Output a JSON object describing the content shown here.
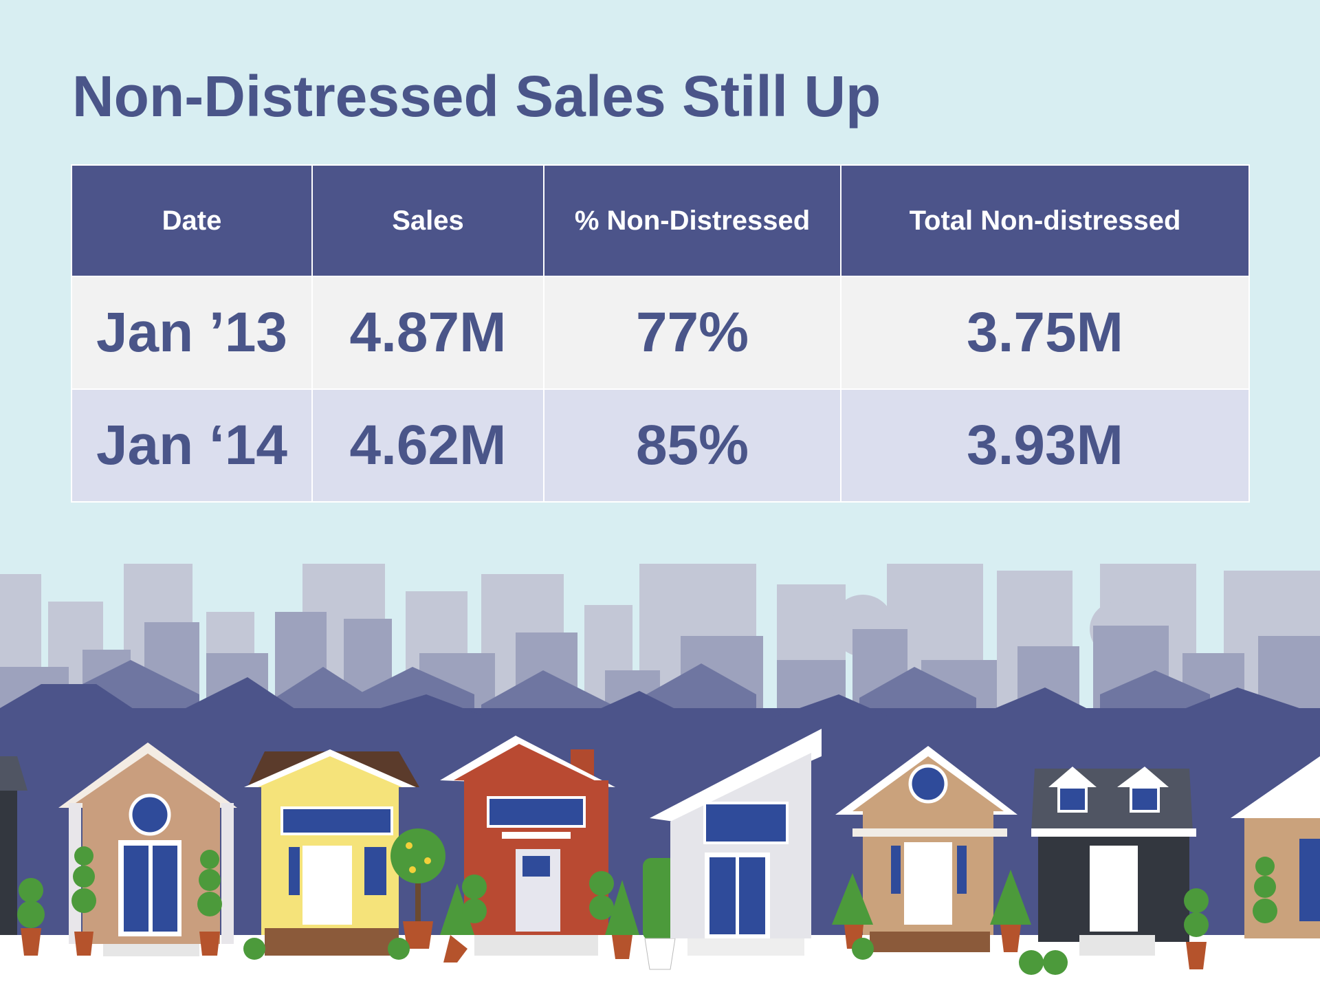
{
  "title": "Non-Distressed Sales Still Up",
  "table": {
    "headers": [
      "Date",
      "Sales",
      "% Non-Distressed",
      "Total Non-distressed"
    ],
    "rows": [
      [
        "Jan ’13",
        "4.87M",
        "77%",
        "3.75M"
      ],
      [
        "Jan ‘14",
        "4.62M",
        "85%",
        "3.93M"
      ]
    ]
  },
  "colors": {
    "background": "#d8eef2",
    "title": "#4a5589",
    "header_bg": "#4c548a",
    "row1_bg": "#f2f2f2",
    "row2_bg": "#dbdeee"
  }
}
